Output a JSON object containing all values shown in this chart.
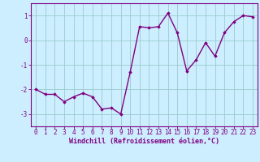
{
  "x": [
    0,
    1,
    2,
    3,
    4,
    5,
    6,
    7,
    8,
    9,
    10,
    11,
    12,
    13,
    14,
    15,
    16,
    17,
    18,
    19,
    20,
    21,
    22,
    23
  ],
  "y": [
    -2.0,
    -2.2,
    -2.2,
    -2.5,
    -2.3,
    -2.15,
    -2.3,
    -2.8,
    -2.75,
    -3.0,
    -1.3,
    0.55,
    0.5,
    0.55,
    1.1,
    0.3,
    -1.25,
    -0.8,
    -0.1,
    -0.65,
    0.3,
    0.75,
    1.0,
    0.95
  ],
  "line_color": "#800080",
  "marker": "D",
  "marker_size": 1.8,
  "bg_color": "#cceeff",
  "grid_color": "#99cccc",
  "xlabel": "Windchill (Refroidissement éolien,°C)",
  "xlim": [
    -0.5,
    23.5
  ],
  "ylim": [
    -3.5,
    1.5
  ],
  "yticks": [
    -3,
    -2,
    -1,
    0,
    1
  ],
  "xticks": [
    0,
    1,
    2,
    3,
    4,
    5,
    6,
    7,
    8,
    9,
    10,
    11,
    12,
    13,
    14,
    15,
    16,
    17,
    18,
    19,
    20,
    21,
    22,
    23
  ],
  "label_color": "#800080",
  "spine_color": "#800080",
  "font_size": 5.5,
  "xlabel_fontsize": 6.0,
  "line_width": 1.0
}
